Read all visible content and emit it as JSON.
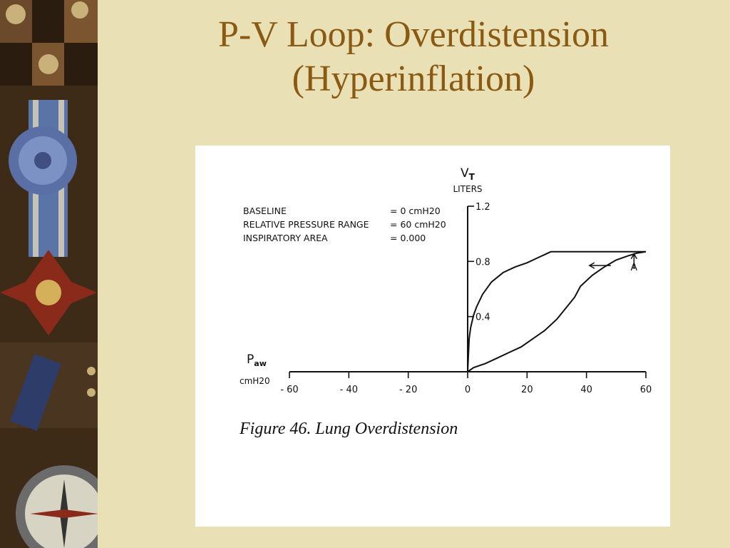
{
  "slide": {
    "title_line1": "P-V Loop: Overdistension",
    "title_line2": "(Hyperinflation)"
  },
  "figure": {
    "caption": "Figure 46. Lung Overdistension",
    "info": [
      {
        "label": "BASELINE",
        "value": "= 0 cmH20"
      },
      {
        "label": "RELATIVE PRESSURE RANGE",
        "value": "= 60 cmH20"
      },
      {
        "label": "INSPIRATORY AREA",
        "value": "= 0.000"
      }
    ],
    "annotation": "A"
  },
  "chart_data": {
    "type": "line",
    "xlabel": "Paw",
    "xlabel_sub": "aw",
    "xunit": "cmH20",
    "ylabel": "VT",
    "ylabel_sub": "T",
    "yunit": "LITERS",
    "x_ticks": [
      {
        "value": -60,
        "label": "- 60"
      },
      {
        "value": -40,
        "label": "- 40"
      },
      {
        "value": -20,
        "label": "- 20"
      },
      {
        "value": 0,
        "label": "0"
      },
      {
        "value": 20,
        "label": "20"
      },
      {
        "value": 40,
        "label": "40"
      },
      {
        "value": 60,
        "label": "60"
      }
    ],
    "y_ticks": [
      {
        "value": 0.4,
        "label": "0.4"
      },
      {
        "value": 0.8,
        "label": "0.8"
      },
      {
        "value": 1.2,
        "label": "1.2"
      }
    ],
    "xlim": [
      -60,
      60
    ],
    "ylim": [
      0,
      1.2
    ],
    "grid": false,
    "series": [
      {
        "name": "",
        "x": [
          0,
          0.5,
          1,
          2,
          3,
          5,
          8,
          12,
          16,
          20,
          24,
          28,
          40,
          50,
          60
        ],
        "y": [
          0,
          0.24,
          0.32,
          0.41,
          0.47,
          0.56,
          0.65,
          0.72,
          0.76,
          0.79,
          0.83,
          0.87,
          0.87,
          0.87,
          0.87
        ]
      },
      {
        "name": "",
        "x": [
          0,
          2,
          6,
          10,
          14,
          18,
          22,
          26,
          30,
          33,
          36,
          38,
          42,
          46,
          50,
          54,
          57,
          60
        ],
        "y": [
          0,
          0.03,
          0.06,
          0.1,
          0.14,
          0.18,
          0.24,
          0.3,
          0.38,
          0.46,
          0.54,
          0.62,
          0.7,
          0.76,
          0.81,
          0.84,
          0.86,
          0.87
        ]
      }
    ]
  }
}
